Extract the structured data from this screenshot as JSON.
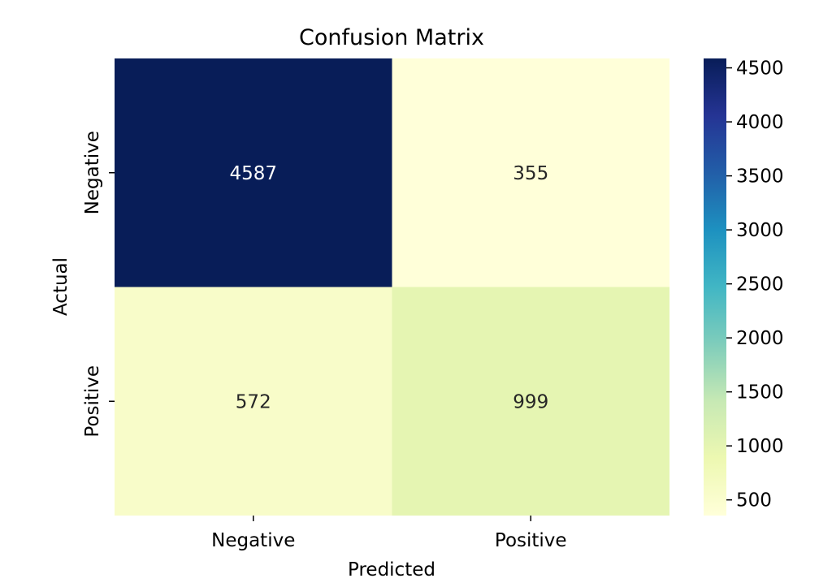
{
  "chart_data": {
    "type": "heatmap",
    "title": "Confusion Matrix",
    "xlabel": "Predicted",
    "ylabel": "Actual",
    "x_categories": [
      "Negative",
      "Positive"
    ],
    "y_categories": [
      "Negative",
      "Positive"
    ],
    "values": [
      [
        4587,
        355
      ],
      [
        572,
        999
      ]
    ],
    "colormap": "YlGnBu",
    "colormap_stops": [
      "#ffffd9",
      "#edf8b1",
      "#c7e9b4",
      "#7fcdbb",
      "#41b6c4",
      "#1d91c0",
      "#225ea8",
      "#253494",
      "#081d58"
    ],
    "color_range": [
      355,
      4587
    ],
    "colorbar_ticks": [
      500,
      1000,
      1500,
      2000,
      2500,
      3000,
      3500,
      4000,
      4500
    ],
    "annotation_dark_text_color": "#262626",
    "annotation_light_text_color": "#ffffff"
  }
}
